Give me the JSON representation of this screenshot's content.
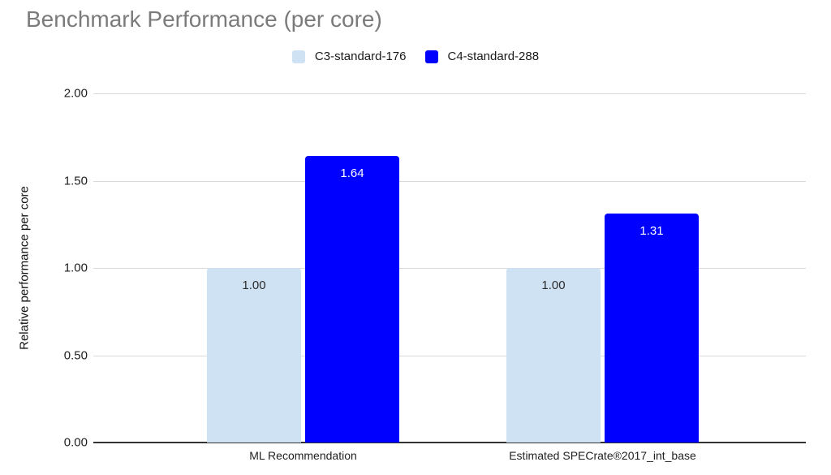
{
  "chart_data": {
    "type": "bar",
    "title": "Benchmark Performance (per core)",
    "xlabel": "",
    "ylabel": "Relative performance per core",
    "categories": [
      "ML Recommendation",
      "Estimated SPECrate®2017_int_base"
    ],
    "series": [
      {
        "name": "C3-standard-176",
        "color": "#cfe2f3",
        "label_color": "#2b2b2b",
        "values": [
          1.0,
          1.0
        ],
        "value_labels": [
          "1.00",
          "1.00"
        ]
      },
      {
        "name": "C4-standard-288",
        "color": "#0000ff",
        "label_color": "#ffffff",
        "values": [
          1.64,
          1.31
        ],
        "value_labels": [
          "1.64",
          "1.31"
        ]
      }
    ],
    "yticks": [
      {
        "value": 0.0,
        "label": "0.00"
      },
      {
        "value": 0.5,
        "label": "0.50"
      },
      {
        "value": 1.0,
        "label": "1.00"
      },
      {
        "value": 1.5,
        "label": "1.50"
      },
      {
        "value": 2.0,
        "label": "2.00"
      }
    ],
    "ylim": [
      0,
      2
    ],
    "legend_position": "top",
    "grid": true,
    "colors": {
      "title_text": "#7b7b7b",
      "gridline": "#d9d9d9",
      "axis_line": "#333333",
      "tick_text": "#1f1f1f"
    }
  }
}
